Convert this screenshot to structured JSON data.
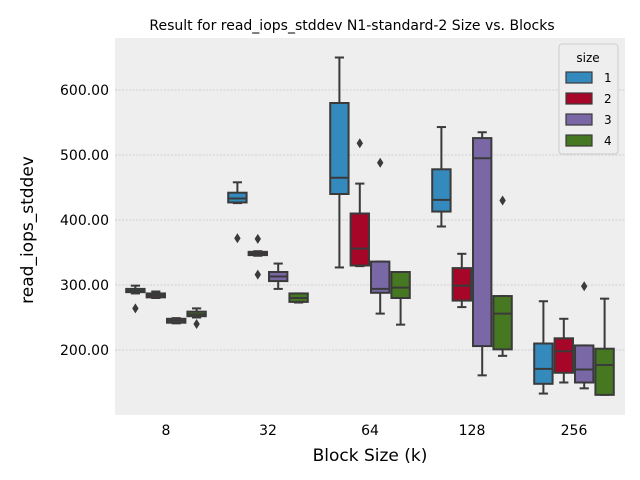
{
  "chart_data": {
    "type": "box",
    "title": "Result for read_iops_stddev N1-standard-2 Size vs. Blocks",
    "xlabel": "Block Size (k)",
    "ylabel": "read_iops_stddev",
    "categories": [
      "8",
      "32",
      "64",
      "128",
      "256"
    ],
    "ylim": [
      100,
      680
    ],
    "yticks": [
      200,
      300,
      400,
      500,
      600
    ],
    "ytick_labels": [
      "200.00",
      "300.00",
      "400.00",
      "500.00",
      "600.00"
    ],
    "grid": true,
    "legend": {
      "title": "size",
      "placement": "top-right"
    },
    "series": [
      {
        "name": "1",
        "color": "#348ABD",
        "boxes": [
          {
            "whislo": 287,
            "q1": 289,
            "med": 291,
            "q3": 294,
            "whishi": 299,
            "fliers": [
              264
            ]
          },
          {
            "whislo": 426,
            "q1": 427,
            "med": 433,
            "q3": 442,
            "whishi": 458,
            "fliers": [
              372
            ]
          },
          {
            "whislo": 327,
            "q1": 440,
            "med": 465,
            "q3": 580,
            "whishi": 650,
            "fliers": []
          },
          {
            "whislo": 390,
            "q1": 413,
            "med": 431,
            "q3": 478,
            "whishi": 543,
            "fliers": []
          },
          {
            "whislo": 133,
            "q1": 148,
            "med": 171,
            "q3": 210,
            "whishi": 275,
            "fliers": []
          }
        ]
      },
      {
        "name": "2",
        "color": "#A60628",
        "boxes": [
          {
            "whislo": 280,
            "q1": 281,
            "med": 284,
            "q3": 287,
            "whishi": 290,
            "fliers": []
          },
          {
            "whislo": 345,
            "q1": 346,
            "med": 348,
            "q3": 351,
            "whishi": 352,
            "fliers": [
              371,
              316
            ]
          },
          {
            "whislo": 329,
            "q1": 330,
            "med": 356,
            "q3": 410,
            "whishi": 456,
            "fliers": [
              518
            ]
          },
          {
            "whislo": 266,
            "q1": 276,
            "med": 299,
            "q3": 326,
            "whishi": 348,
            "fliers": []
          },
          {
            "whislo": 150,
            "q1": 165,
            "med": 198,
            "q3": 218,
            "whishi": 248,
            "fliers": []
          }
        ]
      },
      {
        "name": "3",
        "color": "#7A68A6",
        "boxes": [
          {
            "whislo": 241,
            "q1": 242,
            "med": 245,
            "q3": 248,
            "whishi": 249,
            "fliers": []
          },
          {
            "whislo": 294,
            "q1": 306,
            "med": 313,
            "q3": 320,
            "whishi": 333,
            "fliers": []
          },
          {
            "whislo": 256,
            "q1": 288,
            "med": 294,
            "q3": 336,
            "whishi": 336,
            "fliers": [
              488
            ]
          },
          {
            "whislo": 161,
            "q1": 206,
            "med": 495,
            "q3": 526,
            "whishi": 535,
            "fliers": []
          },
          {
            "whislo": 141,
            "q1": 150,
            "med": 170,
            "q3": 207,
            "whishi": 207,
            "fliers": [
              298
            ]
          }
        ]
      },
      {
        "name": "4",
        "color": "#467821",
        "boxes": [
          {
            "whislo": 250,
            "q1": 252,
            "med": 255,
            "q3": 259,
            "whishi": 264,
            "fliers": [
              240
            ]
          },
          {
            "whislo": 273,
            "q1": 274,
            "med": 280,
            "q3": 287,
            "whishi": 287,
            "fliers": []
          },
          {
            "whislo": 239,
            "q1": 280,
            "med": 296,
            "q3": 320,
            "whishi": 320,
            "fliers": []
          },
          {
            "whislo": 191,
            "q1": 201,
            "med": 256,
            "q3": 283,
            "whishi": 283,
            "fliers": [
              430
            ]
          },
          {
            "whislo": 131,
            "q1": 131,
            "med": 177,
            "q3": 202,
            "whishi": 279,
            "fliers": []
          }
        ]
      }
    ]
  }
}
